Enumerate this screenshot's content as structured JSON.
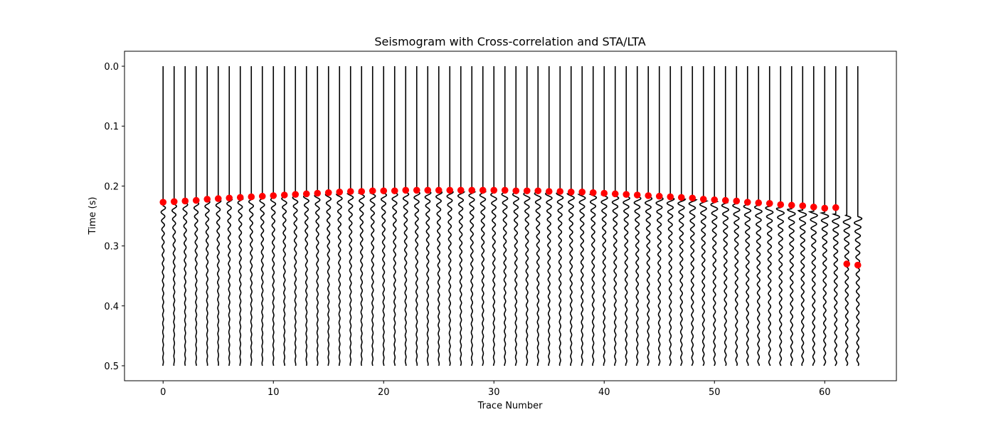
{
  "chart_data": {
    "type": "line",
    "title": "Seismogram with Cross-correlation and STA/LTA",
    "xlabel": "Trace Number",
    "ylabel": "Time (s)",
    "xlim": [
      -3.5,
      66.5
    ],
    "ylim": [
      0.525,
      -0.025
    ],
    "y_inverted": true,
    "grid": false,
    "legend": "none",
    "x_ticks": [
      0,
      10,
      20,
      30,
      40,
      50,
      60
    ],
    "x_tick_labels": [
      "0",
      "10",
      "20",
      "30",
      "40",
      "50",
      "60"
    ],
    "y_ticks": [
      0.0,
      0.1,
      0.2,
      0.3,
      0.4,
      0.5
    ],
    "y_tick_labels": [
      "0.0",
      "0.1",
      "0.2",
      "0.3",
      "0.4",
      "0.5"
    ],
    "trace_count": 64,
    "trace_time_range": [
      0.0,
      0.5
    ],
    "wavelet_amplitude_traces": 0.25,
    "trace_color": "#000000",
    "pick_color": "#ff0000",
    "arrival_times": [
      0.233,
      0.231,
      0.229,
      0.228,
      0.226,
      0.225,
      0.223,
      0.222,
      0.221,
      0.22,
      0.219,
      0.218,
      0.217,
      0.216,
      0.215,
      0.214,
      0.214,
      0.213,
      0.212,
      0.212,
      0.211,
      0.211,
      0.211,
      0.21,
      0.21,
      0.21,
      0.21,
      0.21,
      0.21,
      0.21,
      0.21,
      0.21,
      0.211,
      0.211,
      0.211,
      0.212,
      0.212,
      0.213,
      0.214,
      0.214,
      0.215,
      0.216,
      0.217,
      0.218,
      0.219,
      0.22,
      0.221,
      0.222,
      0.223,
      0.225,
      0.226,
      0.228,
      0.229,
      0.231,
      0.233,
      0.235,
      0.237,
      0.239,
      0.241,
      0.243,
      0.245,
      0.247,
      0.249,
      0.251
    ],
    "picks": [
      {
        "trace": 0,
        "time": 0.227
      },
      {
        "trace": 1,
        "time": 0.226
      },
      {
        "trace": 2,
        "time": 0.225
      },
      {
        "trace": 3,
        "time": 0.224
      },
      {
        "trace": 4,
        "time": 0.222
      },
      {
        "trace": 5,
        "time": 0.221
      },
      {
        "trace": 6,
        "time": 0.22
      },
      {
        "trace": 7,
        "time": 0.219
      },
      {
        "trace": 8,
        "time": 0.218
      },
      {
        "trace": 9,
        "time": 0.217
      },
      {
        "trace": 10,
        "time": 0.216
      },
      {
        "trace": 11,
        "time": 0.215
      },
      {
        "trace": 12,
        "time": 0.214
      },
      {
        "trace": 13,
        "time": 0.213
      },
      {
        "trace": 14,
        "time": 0.212
      },
      {
        "trace": 15,
        "time": 0.211
      },
      {
        "trace": 16,
        "time": 0.21
      },
      {
        "trace": 17,
        "time": 0.209
      },
      {
        "trace": 18,
        "time": 0.209
      },
      {
        "trace": 19,
        "time": 0.208
      },
      {
        "trace": 20,
        "time": 0.208
      },
      {
        "trace": 21,
        "time": 0.208
      },
      {
        "trace": 22,
        "time": 0.207
      },
      {
        "trace": 23,
        "time": 0.207
      },
      {
        "trace": 24,
        "time": 0.207
      },
      {
        "trace": 25,
        "time": 0.207
      },
      {
        "trace": 26,
        "time": 0.207
      },
      {
        "trace": 27,
        "time": 0.207
      },
      {
        "trace": 28,
        "time": 0.207
      },
      {
        "trace": 29,
        "time": 0.207
      },
      {
        "trace": 30,
        "time": 0.207
      },
      {
        "trace": 31,
        "time": 0.207
      },
      {
        "trace": 32,
        "time": 0.208
      },
      {
        "trace": 33,
        "time": 0.208
      },
      {
        "trace": 34,
        "time": 0.208
      },
      {
        "trace": 35,
        "time": 0.209
      },
      {
        "trace": 36,
        "time": 0.209
      },
      {
        "trace": 37,
        "time": 0.21
      },
      {
        "trace": 38,
        "time": 0.21
      },
      {
        "trace": 39,
        "time": 0.211
      },
      {
        "trace": 40,
        "time": 0.212
      },
      {
        "trace": 41,
        "time": 0.213
      },
      {
        "trace": 42,
        "time": 0.214
      },
      {
        "trace": 43,
        "time": 0.215
      },
      {
        "trace": 44,
        "time": 0.216
      },
      {
        "trace": 45,
        "time": 0.217
      },
      {
        "trace": 46,
        "time": 0.218
      },
      {
        "trace": 47,
        "time": 0.219
      },
      {
        "trace": 48,
        "time": 0.22
      },
      {
        "trace": 49,
        "time": 0.222
      },
      {
        "trace": 50,
        "time": 0.223
      },
      {
        "trace": 51,
        "time": 0.224
      },
      {
        "trace": 52,
        "time": 0.225
      },
      {
        "trace": 53,
        "time": 0.227
      },
      {
        "trace": 54,
        "time": 0.228
      },
      {
        "trace": 55,
        "time": 0.229
      },
      {
        "trace": 56,
        "time": 0.231
      },
      {
        "trace": 57,
        "time": 0.232
      },
      {
        "trace": 58,
        "time": 0.233
      },
      {
        "trace": 59,
        "time": 0.235
      },
      {
        "trace": 60,
        "time": 0.237
      },
      {
        "trace": 61,
        "time": 0.236
      },
      {
        "trace": 62,
        "time": 0.33
      },
      {
        "trace": 63,
        "time": 0.332
      }
    ]
  }
}
